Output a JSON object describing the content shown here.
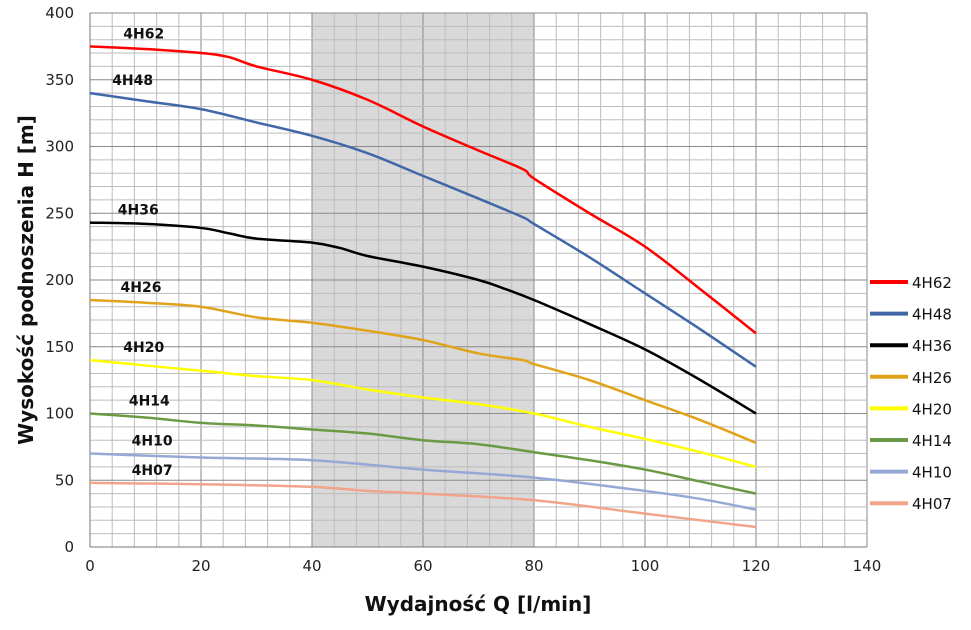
{
  "chart_data": {
    "type": "line",
    "title": "",
    "xlabel": "Wydajność Q [l/min]",
    "ylabel": "Wysokość podnoszenia H [m]",
    "xlim": [
      0,
      140
    ],
    "ylim": [
      0,
      400
    ],
    "xticks": [
      0,
      20,
      40,
      60,
      80,
      100,
      120,
      140
    ],
    "yticks": [
      0,
      50,
      100,
      150,
      200,
      250,
      300,
      350,
      400
    ],
    "grid": true,
    "highlight_range_x": [
      40,
      80
    ],
    "highlight_color": "#d9d9d9",
    "legend_position": "right",
    "series": [
      {
        "name": "4H62",
        "color": "#ff0000",
        "x": [
          0,
          10,
          20,
          25,
          30,
          40,
          50,
          60,
          70,
          78,
          80,
          90,
          100,
          110,
          120
        ],
        "y": [
          375,
          373,
          370,
          367,
          360,
          350,
          335,
          315,
          297,
          283,
          276,
          250,
          225,
          193,
          160
        ]
      },
      {
        "name": "4H48",
        "color": "#4067a8",
        "x": [
          0,
          10,
          20,
          30,
          40,
          50,
          60,
          70,
          78,
          80,
          90,
          100,
          110,
          120
        ],
        "y": [
          340,
          334,
          328,
          318,
          308,
          295,
          278,
          261,
          247,
          242,
          217,
          190,
          163,
          135
        ]
      },
      {
        "name": "4H36",
        "color": "#000000",
        "x": [
          0,
          10,
          20,
          25,
          30,
          40,
          45,
          50,
          60,
          70,
          75,
          80,
          90,
          100,
          110,
          120
        ],
        "y": [
          243,
          242,
          239,
          235,
          231,
          228,
          224,
          218,
          210,
          200,
          193,
          185,
          167,
          148,
          125,
          100
        ]
      },
      {
        "name": "4H26",
        "color": "#e0a31a",
        "x": [
          0,
          10,
          20,
          30,
          40,
          50,
          60,
          70,
          78,
          80,
          90,
          100,
          110,
          120
        ],
        "y": [
          185,
          183,
          180,
          172,
          168,
          162,
          155,
          145,
          140,
          137,
          125,
          110,
          95,
          78
        ]
      },
      {
        "name": "4H20",
        "color": "#ffff00",
        "x": [
          0,
          20,
          30,
          40,
          50,
          60,
          70,
          80,
          90,
          100,
          110,
          120
        ],
        "y": [
          140,
          132,
          128,
          125,
          118,
          112,
          107,
          100,
          90,
          81,
          71,
          60
        ]
      },
      {
        "name": "4H14",
        "color": "#6a9a45",
        "x": [
          0,
          10,
          20,
          30,
          40,
          50,
          60,
          70,
          80,
          90,
          100,
          110,
          120
        ],
        "y": [
          100,
          97,
          93,
          91,
          88,
          85,
          80,
          77,
          71,
          65,
          58,
          49,
          40
        ]
      },
      {
        "name": "4H10",
        "color": "#96a9d6",
        "x": [
          0,
          20,
          40,
          60,
          80,
          100,
          110,
          120
        ],
        "y": [
          70,
          67,
          65,
          58,
          52,
          42,
          36,
          28
        ]
      },
      {
        "name": "4H07",
        "color": "#f0a58a",
        "x": [
          0,
          20,
          40,
          50,
          60,
          80,
          100,
          120
        ],
        "y": [
          48,
          47,
          45,
          42,
          40,
          35,
          25,
          15
        ]
      }
    ]
  }
}
